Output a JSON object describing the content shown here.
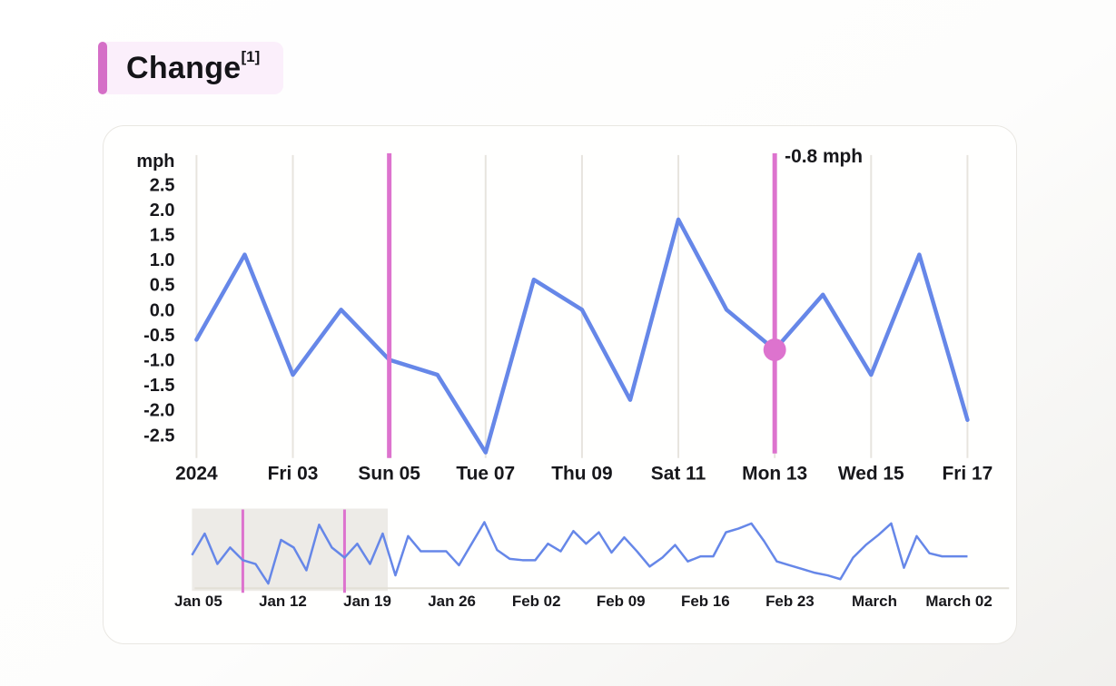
{
  "title": {
    "text": "Change",
    "superscript": "[1]"
  },
  "colors": {
    "line_blue": "#6687e8",
    "marker_pink": "#dd73ce",
    "accent_pink": "#d56fc7",
    "title_chip_bg": "#fbeffb",
    "gridline": "#e7e4de",
    "navigator_axis": "#e3dfd6",
    "navigator_selection_bg": "#edebe7",
    "card_border": "#e9e7e2",
    "text": "#17171b"
  },
  "chart_data": {
    "type": "line",
    "title": "Change",
    "ylabel": "mph",
    "ylim": [
      -3,
      3.1
    ],
    "grid": "vertical-only",
    "legend": "none",
    "y_ticks": [
      "2.5",
      "2.0",
      "1.5",
      "1.0",
      "0.5",
      "0.0",
      "-0.5",
      "-1.0",
      "-1.5",
      "-2.0",
      "-2.5"
    ],
    "x_tick_labels": [
      "2024",
      "Fri 03",
      "Sun 05",
      "Tue 07",
      "Thu 09",
      "Sat 11",
      "Mon 13",
      "Wed 15",
      "Fri 17"
    ],
    "days_per_tick": 2,
    "series": [
      {
        "name": "Change (mph)",
        "values": [
          -0.6,
          1.1,
          -1.3,
          0.0,
          -1.0,
          -1.3,
          -2.85,
          0.6,
          0.0,
          -1.8,
          1.8,
          0.0,
          -0.8,
          0.3,
          -1.3,
          1.1,
          -2.2
        ]
      }
    ],
    "selected_marker": {
      "day": 5,
      "x_label": "Sun 05"
    },
    "highlight": {
      "day": 13,
      "x_label": "Mon 13",
      "value": -0.8,
      "tooltip": "-0.8 mph"
    },
    "navigator": {
      "x_tick_labels": [
        "Jan 05",
        "Jan 12",
        "Jan 19",
        "Jan 26",
        "Feb 02",
        "Feb 09",
        "Feb 16",
        "Feb 23",
        "March",
        "March 02"
      ],
      "values": [
        -0.6,
        1.1,
        -1.3,
        0.0,
        -1.0,
        -1.3,
        -2.85,
        0.6,
        0.0,
        -1.8,
        1.8,
        0.0,
        -0.8,
        0.3,
        -1.3,
        1.1,
        -2.2,
        0.9,
        -0.3,
        -0.3,
        -0.3,
        -1.4,
        0.3,
        2.0,
        -0.2,
        -0.9,
        -1.0,
        -1.0,
        0.3,
        -0.3,
        1.3,
        0.3,
        1.2,
        -0.4,
        0.8,
        -0.3,
        -1.5,
        -0.8,
        0.2,
        -1.1,
        -0.7,
        -0.7,
        1.2,
        1.5,
        1.9,
        0.5,
        -1.1,
        -1.4,
        -1.7,
        -2.0,
        -2.2,
        -2.5,
        -0.8,
        0.2,
        1.0,
        1.9,
        -1.6,
        0.9,
        -0.45,
        -0.7,
        -0.7,
        -0.7
      ],
      "selection": {
        "start_day": 1,
        "end_day": 16.4
      },
      "marker_days": [
        5,
        13
      ]
    }
  }
}
